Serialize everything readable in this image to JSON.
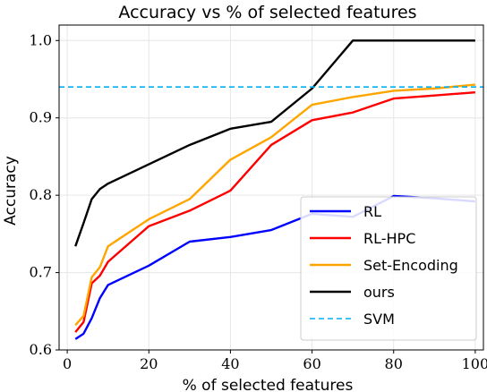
{
  "chart_data": {
    "type": "line",
    "title": "Accuracy vs % of selected features",
    "xlabel": "% of selected features",
    "ylabel": "Accuracy",
    "xlim": [
      -2,
      102
    ],
    "ylim": [
      0.6,
      1.02
    ],
    "xticks": [
      0,
      20,
      40,
      60,
      80,
      100
    ],
    "yticks": [
      0.6,
      0.7,
      0.8,
      0.9,
      1.0
    ],
    "xtick_labels": [
      "0",
      "20",
      "40",
      "60",
      "80",
      "100"
    ],
    "ytick_labels": [
      "0.6",
      "0.7",
      "0.8",
      "0.9",
      "1.0"
    ],
    "grid": true,
    "legend_position": "lower-right",
    "series": [
      {
        "name": "RL",
        "color": "#0000ff",
        "style": "solid",
        "x": [
          2,
          4,
          6,
          8,
          10,
          20,
          30,
          40,
          50,
          60,
          70,
          80,
          90,
          100
        ],
        "values": [
          0.614,
          0.621,
          0.641,
          0.667,
          0.684,
          0.709,
          0.74,
          0.746,
          0.755,
          0.776,
          0.772,
          0.799,
          0.796,
          0.792
        ]
      },
      {
        "name": "RL-HPC",
        "color": "#ff0000",
        "style": "solid",
        "x": [
          2,
          4,
          6,
          8,
          10,
          20,
          30,
          40,
          50,
          60,
          70,
          80,
          90,
          100
        ],
        "values": [
          0.623,
          0.636,
          0.686,
          0.696,
          0.714,
          0.76,
          0.78,
          0.806,
          0.865,
          0.897,
          0.907,
          0.925,
          0.929,
          0.933
        ]
      },
      {
        "name": "Set-Encoding",
        "color": "#ffa500",
        "style": "solid",
        "x": [
          2,
          4,
          6,
          8,
          10,
          20,
          30,
          40,
          50,
          60,
          70,
          80,
          90,
          100
        ],
        "values": [
          0.632,
          0.644,
          0.694,
          0.707,
          0.734,
          0.769,
          0.795,
          0.846,
          0.875,
          0.917,
          0.927,
          0.935,
          0.938,
          0.943
        ]
      },
      {
        "name": "ours",
        "color": "#000000",
        "style": "solid",
        "x": [
          2,
          4,
          6,
          8,
          10,
          20,
          30,
          40,
          50,
          60,
          70,
          80,
          90,
          100
        ],
        "values": [
          0.734,
          0.764,
          0.795,
          0.808,
          0.815,
          0.84,
          0.865,
          0.886,
          0.895,
          0.938,
          1.0,
          1.0,
          1.0,
          1.0
        ]
      },
      {
        "name": "SVM",
        "color": "#00b0f0",
        "style": "dashed",
        "x": [
          -2,
          102
        ],
        "values": [
          0.94,
          0.94
        ]
      }
    ]
  }
}
